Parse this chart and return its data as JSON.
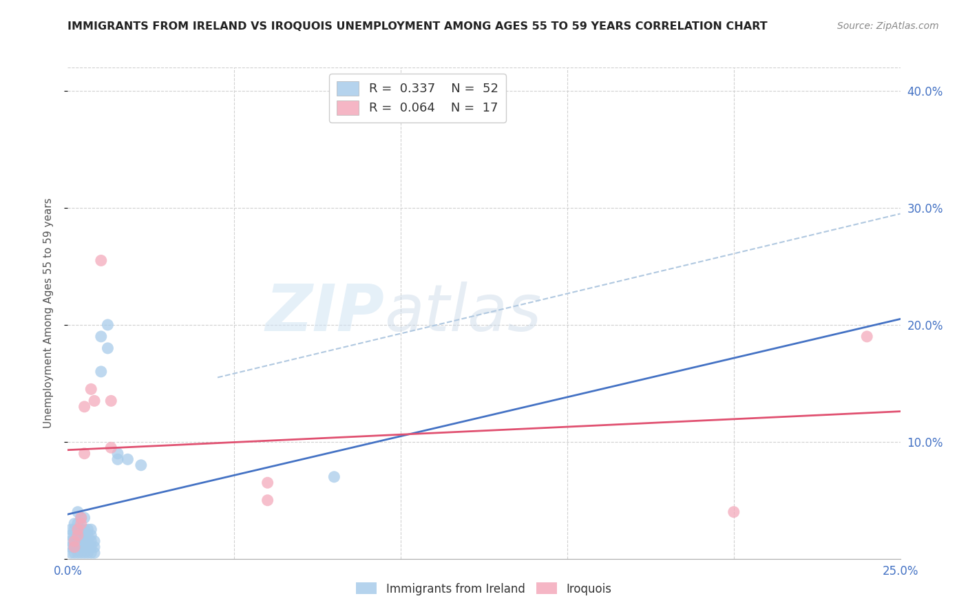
{
  "title": "IMMIGRANTS FROM IRELAND VS IROQUOIS UNEMPLOYMENT AMONG AGES 55 TO 59 YEARS CORRELATION CHART",
  "source": "Source: ZipAtlas.com",
  "ylabel": "Unemployment Among Ages 55 to 59 years",
  "xlim": [
    0,
    0.25
  ],
  "ylim": [
    0,
    0.42
  ],
  "legend_entries": [
    {
      "label": "R =  0.337    N =  52",
      "color": "#A8CCEA"
    },
    {
      "label": "R =  0.064    N =  17",
      "color": "#F4AABB"
    }
  ],
  "watermark_zip": "ZIP",
  "watermark_atlas": "atlas",
  "blue_scatter": [
    [
      0.001,
      0.005
    ],
    [
      0.001,
      0.01
    ],
    [
      0.001,
      0.015
    ],
    [
      0.001,
      0.02
    ],
    [
      0.001,
      0.025
    ],
    [
      0.002,
      0.005
    ],
    [
      0.002,
      0.01
    ],
    [
      0.002,
      0.015
    ],
    [
      0.002,
      0.02
    ],
    [
      0.002,
      0.025
    ],
    [
      0.002,
      0.03
    ],
    [
      0.003,
      0.005
    ],
    [
      0.003,
      0.01
    ],
    [
      0.003,
      0.015
    ],
    [
      0.003,
      0.02
    ],
    [
      0.003,
      0.025
    ],
    [
      0.003,
      0.03
    ],
    [
      0.003,
      0.04
    ],
    [
      0.004,
      0.005
    ],
    [
      0.004,
      0.01
    ],
    [
      0.004,
      0.015
    ],
    [
      0.004,
      0.02
    ],
    [
      0.004,
      0.025
    ],
    [
      0.004,
      0.035
    ],
    [
      0.005,
      0.005
    ],
    [
      0.005,
      0.01
    ],
    [
      0.005,
      0.015
    ],
    [
      0.005,
      0.02
    ],
    [
      0.005,
      0.025
    ],
    [
      0.005,
      0.035
    ],
    [
      0.006,
      0.005
    ],
    [
      0.006,
      0.01
    ],
    [
      0.006,
      0.015
    ],
    [
      0.006,
      0.02
    ],
    [
      0.006,
      0.025
    ],
    [
      0.007,
      0.005
    ],
    [
      0.007,
      0.01
    ],
    [
      0.007,
      0.015
    ],
    [
      0.007,
      0.02
    ],
    [
      0.007,
      0.025
    ],
    [
      0.008,
      0.005
    ],
    [
      0.008,
      0.01
    ],
    [
      0.008,
      0.015
    ],
    [
      0.01,
      0.16
    ],
    [
      0.01,
      0.19
    ],
    [
      0.012,
      0.18
    ],
    [
      0.012,
      0.2
    ],
    [
      0.015,
      0.085
    ],
    [
      0.015,
      0.09
    ],
    [
      0.018,
      0.085
    ],
    [
      0.022,
      0.08
    ],
    [
      0.08,
      0.07
    ]
  ],
  "pink_scatter": [
    [
      0.002,
      0.01
    ],
    [
      0.002,
      0.015
    ],
    [
      0.003,
      0.02
    ],
    [
      0.003,
      0.025
    ],
    [
      0.004,
      0.03
    ],
    [
      0.004,
      0.035
    ],
    [
      0.005,
      0.09
    ],
    [
      0.005,
      0.13
    ],
    [
      0.007,
      0.145
    ],
    [
      0.008,
      0.135
    ],
    [
      0.01,
      0.255
    ],
    [
      0.013,
      0.095
    ],
    [
      0.013,
      0.135
    ],
    [
      0.06,
      0.05
    ],
    [
      0.06,
      0.065
    ],
    [
      0.2,
      0.04
    ],
    [
      0.24,
      0.19
    ]
  ],
  "blue_line_x": [
    0.0,
    0.25
  ],
  "blue_line_y": [
    0.038,
    0.205
  ],
  "pink_line_x": [
    0.0,
    0.25
  ],
  "pink_line_y": [
    0.093,
    0.126
  ],
  "blue_dash_line_x": [
    0.045,
    0.25
  ],
  "blue_dash_line_y": [
    0.155,
    0.295
  ],
  "blue_color": "#A8CCEA",
  "pink_color": "#F4AABB",
  "blue_line_color": "#4472C4",
  "pink_line_color": "#E05070",
  "blue_dash_color": "#B0C8E0",
  "grid_color": "#D0D0D0",
  "title_color": "#222222",
  "right_axis_color": "#4472C4",
  "bottom_axis_color": "#4472C4",
  "background_color": "#FFFFFF"
}
